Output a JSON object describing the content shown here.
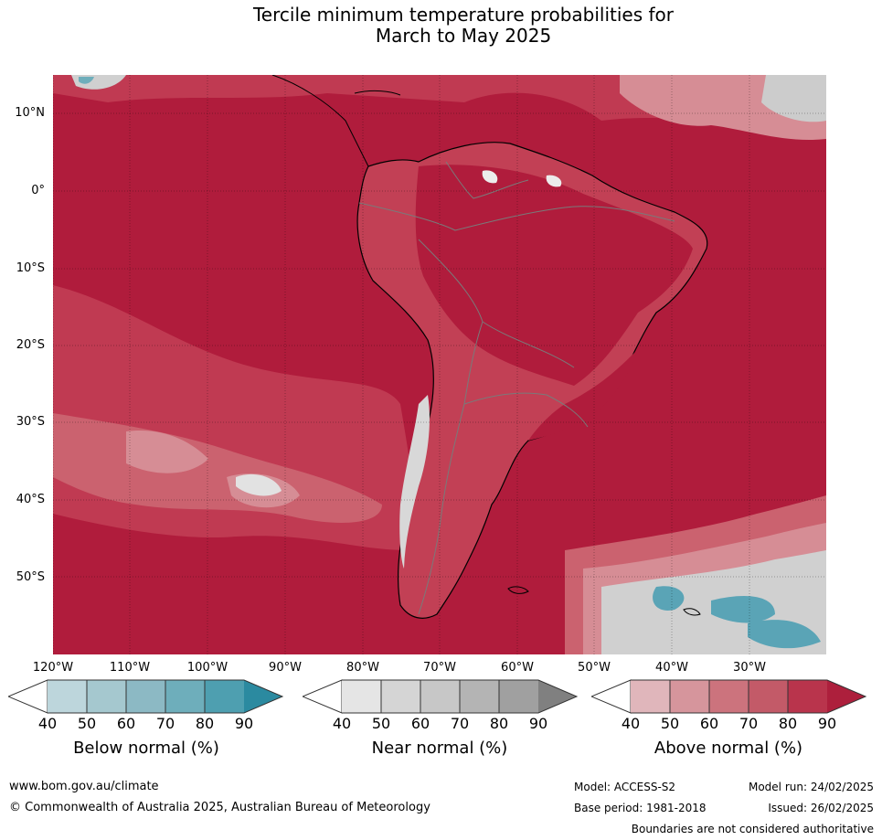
{
  "title": {
    "line1": "Tercile minimum temperature probabilities for",
    "line2": "March to May 2025"
  },
  "map": {
    "latitude_labels": [
      "10°N",
      "0°",
      "10°S",
      "20°S",
      "30°S",
      "40°S",
      "50°S"
    ],
    "longitude_labels": [
      "120°W",
      "110°W",
      "100°W",
      "90°W",
      "80°W",
      "70°W",
      "60°W",
      "50°W",
      "40°W",
      "30°W"
    ],
    "colors": {
      "above_90": "#b01c3c",
      "above_80": "#c03a52",
      "above_70": "#cb626f",
      "above_60": "#d68d95",
      "above_50": "#e0b4b9",
      "near": "#d0d0d0",
      "below": "#5aa4b6",
      "land_outline": "#000000",
      "border": "#7a7a7a"
    }
  },
  "legends": [
    {
      "name": "below",
      "title": "Below normal (%)",
      "ticks": [
        "40",
        "50",
        "60",
        "70",
        "80",
        "90"
      ],
      "colors": [
        "#bdd6dc",
        "#a5c8cf",
        "#8cb9c4",
        "#6eaebb",
        "#4e9fb0",
        "#2b8aa0"
      ]
    },
    {
      "name": "near",
      "title": "Near normal (%)",
      "ticks": [
        "40",
        "50",
        "60",
        "70",
        "80",
        "90"
      ],
      "colors": [
        "#e5e5e5",
        "#d5d5d5",
        "#c7c7c7",
        "#b4b4b4",
        "#a0a0a0",
        "#808080"
      ]
    },
    {
      "name": "above",
      "title": "Above normal (%)",
      "ticks": [
        "40",
        "50",
        "60",
        "70",
        "80",
        "90"
      ],
      "colors": [
        "#e0b6bb",
        "#d6959c",
        "#cc737d",
        "#c35a68",
        "#b9344c",
        "#ad1f3c"
      ]
    }
  ],
  "footer": {
    "website": "www.bom.gov.au/climate",
    "copyright": "© Commonwealth of Australia 2025, Australian Bureau of Meteorology",
    "model": "Model: ACCESS-S2",
    "base_period": "Base period: 1981-2018",
    "model_run": "Model run: 24/02/2025",
    "issued": "Issued: 26/02/2025",
    "disclaimer": "Boundaries are not considered authoritative"
  }
}
